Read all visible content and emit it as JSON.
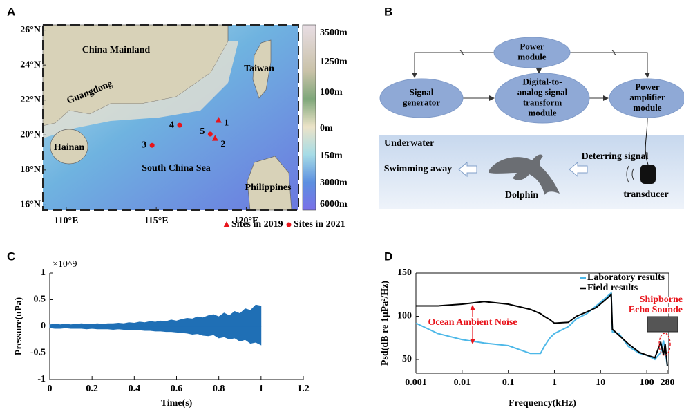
{
  "map": {
    "letter": "A",
    "xlim": [
      108.7,
      122.9
    ],
    "ylim": [
      15.7,
      26.3
    ],
    "xticks": [
      {
        "value": 110,
        "label": "110°E"
      },
      {
        "value": 115,
        "label": "115°E"
      },
      {
        "value": 120,
        "label": "120°E"
      }
    ],
    "yticks": [
      {
        "value": 26,
        "label": "26°N"
      },
      {
        "value": 24,
        "label": "24°N"
      },
      {
        "value": 22,
        "label": "22°N"
      },
      {
        "value": 20,
        "label": "20°N"
      },
      {
        "value": 18,
        "label": "18°N"
      },
      {
        "value": 16,
        "label": "16°N"
      }
    ],
    "colorbar": [
      "3500m",
      "1250m",
      "100m",
      "0m",
      "150m",
      "3000m",
      "6000m"
    ],
    "places": [
      "China Mainland",
      "Guangdong",
      "Taiwan",
      "Hainan",
      "South China Sea",
      "Philippines"
    ],
    "sites": [
      {
        "label": "1",
        "lon": 118.46,
        "lat": 20.84,
        "marker": "triangle"
      },
      {
        "label": "2",
        "lon": 118.27,
        "lat": 19.81,
        "marker": "triangle"
      },
      {
        "label": "3",
        "lon": 114.77,
        "lat": 19.41,
        "marker": "circle"
      },
      {
        "label": "4",
        "lon": 116.3,
        "lat": 20.56,
        "marker": "circle"
      },
      {
        "label": "5",
        "lon": 118.0,
        "lat": 20.05,
        "marker": "circle"
      }
    ],
    "site_color": "#e8141b",
    "legend": [
      {
        "marker": "triangle",
        "label": "Sites in 2019"
      },
      {
        "marker": "circle",
        "label": "Sites in 2021"
      }
    ]
  },
  "diagram": {
    "letter": "B",
    "nodes": [
      [
        "Power",
        "module"
      ],
      [
        "Digital-to-",
        "analog signal",
        "transform",
        "module"
      ],
      [
        "Signal",
        "generator"
      ],
      [
        "Power",
        "amplifier",
        "module"
      ]
    ],
    "scene": {
      "label": "Underwater",
      "signal": "Deterring signal",
      "escape": "Swimming away",
      "animal": "Dolphin",
      "device": "transducer"
    }
  },
  "chart_data": [
    {
      "type": "band",
      "letter": "C",
      "multiplier": "×10^9",
      "xlabel": "Time(s)",
      "ylabel": "Pressure(uPa)",
      "color": "#1f6fb5",
      "xlim": [
        0,
        1.2
      ],
      "ylim": [
        -1,
        1
      ],
      "xticks": [
        0,
        0.2,
        0.4,
        0.6,
        0.8,
        1,
        1.2
      ],
      "yticks": [
        1,
        0.5,
        0,
        -0.5,
        -1
      ],
      "x": [
        0,
        0.025,
        0.05,
        0.075,
        0.1,
        0.125,
        0.15,
        0.175,
        0.2,
        0.225,
        0.25,
        0.275,
        0.3,
        0.325,
        0.35,
        0.375,
        0.4,
        0.425,
        0.45,
        0.475,
        0.5,
        0.525,
        0.55,
        0.575,
        0.6,
        0.625,
        0.65,
        0.675,
        0.7,
        0.725,
        0.75,
        0.775,
        0.8,
        0.825,
        0.85,
        0.875,
        0.9,
        0.925,
        0.95,
        0.975,
        1
      ],
      "upper": [
        0.03,
        0.04,
        0.03,
        0.04,
        0.03,
        0.04,
        0.05,
        0.04,
        0.04,
        0.05,
        0.04,
        0.05,
        0.05,
        0.06,
        0.05,
        0.07,
        0.06,
        0.08,
        0.07,
        0.09,
        0.08,
        0.1,
        0.09,
        0.12,
        0.1,
        0.13,
        0.15,
        0.14,
        0.18,
        0.16,
        0.2,
        0.22,
        0.18,
        0.25,
        0.2,
        0.28,
        0.24,
        0.33,
        0.3,
        0.4,
        0.38
      ],
      "lower": [
        -0.03,
        -0.04,
        -0.04,
        -0.03,
        -0.04,
        -0.04,
        -0.04,
        -0.05,
        -0.04,
        -0.05,
        -0.05,
        -0.05,
        -0.06,
        -0.05,
        -0.06,
        -0.06,
        -0.07,
        -0.07,
        -0.08,
        -0.08,
        -0.09,
        -0.09,
        -0.1,
        -0.1,
        -0.11,
        -0.12,
        -0.13,
        -0.15,
        -0.14,
        -0.17,
        -0.18,
        -0.16,
        -0.22,
        -0.2,
        -0.24,
        -0.22,
        -0.28,
        -0.25,
        -0.32,
        -0.3,
        -0.35
      ]
    },
    {
      "type": "line",
      "letter": "D",
      "xlabel": "Frequency(kHz)",
      "ylabel": "Psd(dB re 1μPa²/Hz)",
      "xscale": "log",
      "xlim": [
        0.001,
        300
      ],
      "ylim": [
        34,
        150
      ],
      "xticks": [
        0.001,
        0.01,
        0.1,
        1,
        10,
        100,
        280
      ],
      "yticks": [
        50,
        100,
        150
      ],
      "legend": "top-right",
      "x": [
        0.001,
        0.003,
        0.01,
        0.03,
        0.1,
        0.3,
        0.5,
        0.6,
        0.8,
        1,
        2,
        3,
        5,
        8,
        12,
        17,
        18,
        25,
        40,
        70,
        100,
        150,
        200,
        230,
        250,
        280
      ],
      "series": [
        {
          "name": "Laboratory results",
          "color": "#4db8e8",
          "values": [
            92,
            80,
            73,
            69,
            66,
            57,
            57,
            65,
            75,
            80,
            88,
            97,
            103,
            112,
            120,
            127,
            82,
            80,
            65,
            57,
            55,
            50,
            58,
            72,
            60,
            42
          ]
        },
        {
          "name": "Field results",
          "color": "#000000",
          "values": [
            112,
            112,
            114,
            117,
            114,
            108,
            103,
            100,
            96,
            92,
            93,
            100,
            105,
            110,
            118,
            125,
            85,
            78,
            68,
            58,
            55,
            52,
            70,
            55,
            68,
            42
          ]
        }
      ],
      "annotations": [
        "Ocean Ambient Noise",
        "Shipborne",
        "Echo Sounde"
      ]
    }
  ]
}
